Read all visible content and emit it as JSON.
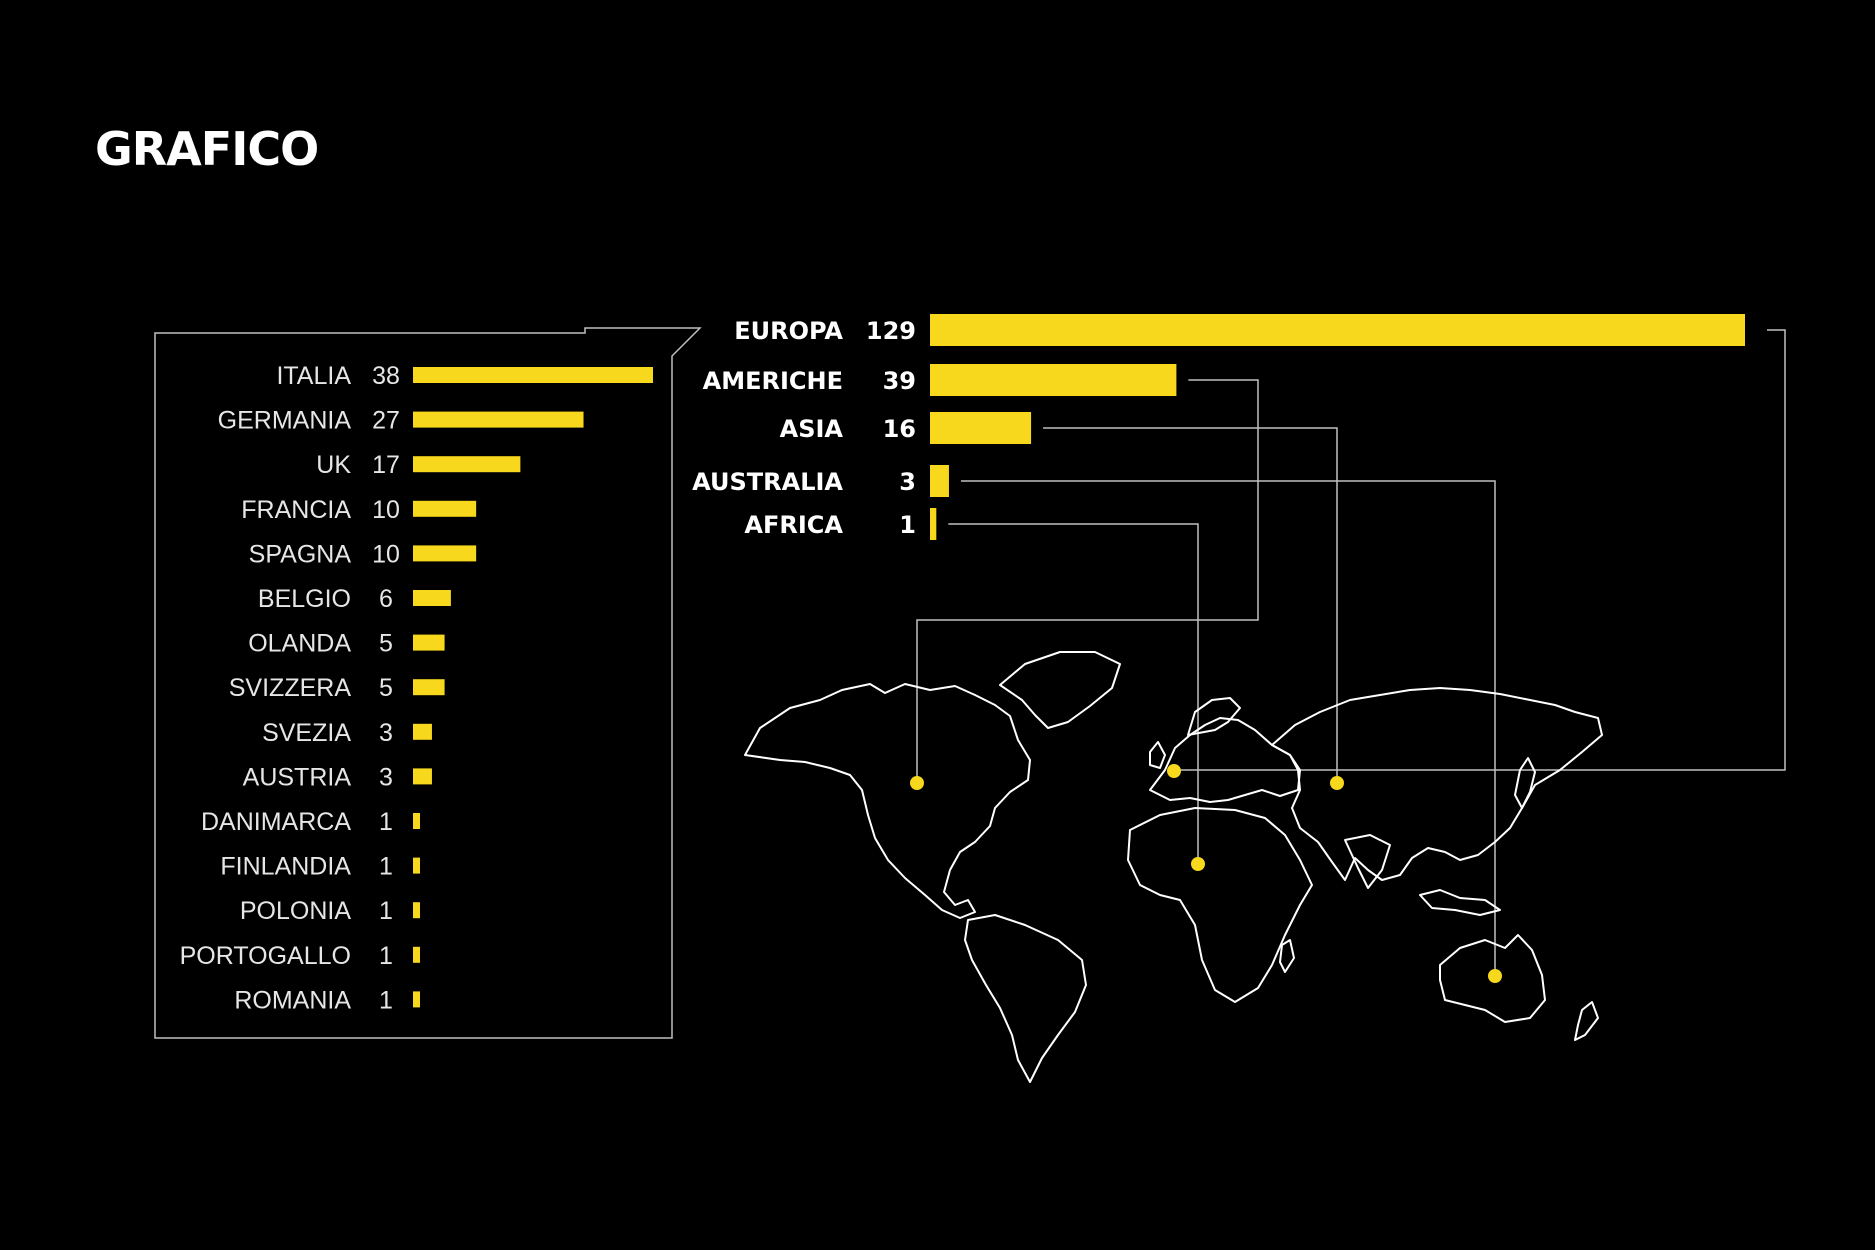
{
  "page": {
    "title": "GRAFICO"
  },
  "colors": {
    "background": "#000000",
    "bar": "#f7d81c",
    "text": "#ffffff",
    "frame": "#a6a6a6"
  },
  "chart_data": [
    {
      "type": "bar",
      "orientation": "horizontal",
      "categories": [
        "ITALIA",
        "GERMANIA",
        "UK",
        "FRANCIA",
        "SPAGNA",
        "BELGIO",
        "OLANDA",
        "SVIZZERA",
        "SVEZIA",
        "AUSTRIA",
        "DANIMARCA",
        "FINLANDIA",
        "POLONIA",
        "PORTOGALLO",
        "ROMANIA"
      ],
      "values": [
        38,
        27,
        17,
        10,
        10,
        6,
        5,
        5,
        3,
        3,
        1,
        1,
        1,
        1,
        1
      ],
      "data_labels": [
        "38",
        "27",
        "17",
        "10",
        "10",
        "6",
        "5",
        "5",
        "3",
        "3",
        "1",
        "1",
        "1",
        "1",
        "1"
      ]
    },
    {
      "type": "bar",
      "orientation": "horizontal",
      "categories": [
        "EUROPA",
        "AMERICHE",
        "ASIA",
        "AUSTRALIA",
        "AFRICA"
      ],
      "values": [
        129,
        39,
        16,
        3,
        1
      ],
      "data_labels": [
        "129",
        "39",
        "16",
        "3",
        "1"
      ],
      "map_markers": [
        "EUROPA",
        "AMERICHE",
        "ASIA",
        "AUSTRALIA",
        "AFRICA"
      ]
    }
  ]
}
